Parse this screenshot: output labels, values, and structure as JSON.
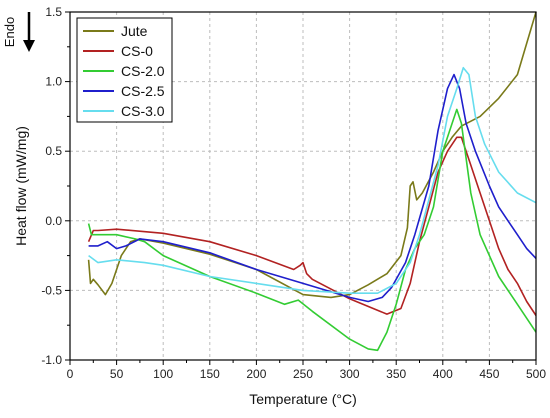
{
  "chart_data": {
    "type": "line",
    "title": "",
    "xlabel": "Temperature (°C)",
    "ylabel": "Heat flow (mW/mg)",
    "xlim": [
      0,
      500
    ],
    "ylim": [
      -1.0,
      1.5
    ],
    "xticks": [
      0,
      50,
      100,
      150,
      200,
      250,
      300,
      350,
      400,
      450,
      500
    ],
    "yticks": [
      -1.0,
      -0.5,
      0.0,
      0.5,
      1.0,
      1.5
    ],
    "xtick_labels": [
      "0",
      "50",
      "100",
      "150",
      "200",
      "250",
      "300",
      "350",
      "400",
      "450",
      "500"
    ],
    "ytick_labels": [
      "-1.0",
      "-0.5",
      "0.0",
      "0.5",
      "1.0",
      "1.5"
    ],
    "grid": true,
    "legend_position": "top-left",
    "annotation": "Endo",
    "series": [
      {
        "name": "Jute",
        "color": "#7a7a1a",
        "points": [
          [
            20,
            -0.28
          ],
          [
            22,
            -0.45
          ],
          [
            25,
            -0.42
          ],
          [
            30,
            -0.46
          ],
          [
            38,
            -0.53
          ],
          [
            45,
            -0.45
          ],
          [
            55,
            -0.25
          ],
          [
            65,
            -0.15
          ],
          [
            75,
            -0.13
          ],
          [
            100,
            -0.16
          ],
          [
            150,
            -0.24
          ],
          [
            200,
            -0.35
          ],
          [
            250,
            -0.53
          ],
          [
            280,
            -0.55
          ],
          [
            300,
            -0.53
          ],
          [
            320,
            -0.46
          ],
          [
            340,
            -0.38
          ],
          [
            355,
            -0.25
          ],
          [
            362,
            -0.05
          ],
          [
            365,
            0.25
          ],
          [
            368,
            0.28
          ],
          [
            372,
            0.15
          ],
          [
            378,
            0.2
          ],
          [
            390,
            0.35
          ],
          [
            400,
            0.5
          ],
          [
            410,
            0.6
          ],
          [
            420,
            0.68
          ],
          [
            440,
            0.75
          ],
          [
            460,
            0.88
          ],
          [
            480,
            1.05
          ],
          [
            500,
            1.5
          ]
        ]
      },
      {
        "name": "CS-0",
        "color": "#b22222",
        "points": [
          [
            20,
            -0.15
          ],
          [
            25,
            -0.07
          ],
          [
            30,
            -0.07
          ],
          [
            50,
            -0.06
          ],
          [
            100,
            -0.09
          ],
          [
            150,
            -0.15
          ],
          [
            200,
            -0.25
          ],
          [
            240,
            -0.35
          ],
          [
            247,
            -0.32
          ],
          [
            250,
            -0.3
          ],
          [
            254,
            -0.38
          ],
          [
            260,
            -0.42
          ],
          [
            300,
            -0.56
          ],
          [
            340,
            -0.67
          ],
          [
            355,
            -0.63
          ],
          [
            365,
            -0.45
          ],
          [
            375,
            -0.15
          ],
          [
            385,
            0.1
          ],
          [
            395,
            0.35
          ],
          [
            405,
            0.5
          ],
          [
            415,
            0.6
          ],
          [
            420,
            0.6
          ],
          [
            430,
            0.4
          ],
          [
            440,
            0.2
          ],
          [
            450,
            0.0
          ],
          [
            460,
            -0.2
          ],
          [
            470,
            -0.35
          ],
          [
            480,
            -0.45
          ],
          [
            490,
            -0.58
          ],
          [
            500,
            -0.68
          ]
        ]
      },
      {
        "name": "CS-2.0",
        "color": "#33cc33",
        "points": [
          [
            20,
            -0.02
          ],
          [
            23,
            -0.1
          ],
          [
            25,
            -0.1
          ],
          [
            50,
            -0.1
          ],
          [
            70,
            -0.13
          ],
          [
            80,
            -0.15
          ],
          [
            100,
            -0.25
          ],
          [
            150,
            -0.4
          ],
          [
            200,
            -0.52
          ],
          [
            230,
            -0.6
          ],
          [
            245,
            -0.57
          ],
          [
            260,
            -0.65
          ],
          [
            300,
            -0.85
          ],
          [
            320,
            -0.92
          ],
          [
            330,
            -0.93
          ],
          [
            340,
            -0.8
          ],
          [
            350,
            -0.6
          ],
          [
            360,
            -0.35
          ],
          [
            370,
            -0.2
          ],
          [
            380,
            -0.1
          ],
          [
            390,
            0.1
          ],
          [
            400,
            0.5
          ],
          [
            410,
            0.7
          ],
          [
            415,
            0.8
          ],
          [
            420,
            0.7
          ],
          [
            430,
            0.2
          ],
          [
            440,
            -0.1
          ],
          [
            460,
            -0.4
          ],
          [
            480,
            -0.6
          ],
          [
            500,
            -0.8
          ]
        ]
      },
      {
        "name": "CS-2.5",
        "color": "#1f1fcc",
        "points": [
          [
            20,
            -0.18
          ],
          [
            30,
            -0.18
          ],
          [
            40,
            -0.15
          ],
          [
            50,
            -0.2
          ],
          [
            60,
            -0.18
          ],
          [
            75,
            -0.13
          ],
          [
            100,
            -0.15
          ],
          [
            150,
            -0.23
          ],
          [
            200,
            -0.35
          ],
          [
            250,
            -0.45
          ],
          [
            300,
            -0.55
          ],
          [
            320,
            -0.58
          ],
          [
            335,
            -0.55
          ],
          [
            345,
            -0.48
          ],
          [
            360,
            -0.3
          ],
          [
            370,
            -0.1
          ],
          [
            385,
            0.25
          ],
          [
            395,
            0.65
          ],
          [
            405,
            0.95
          ],
          [
            412,
            1.05
          ],
          [
            418,
            0.95
          ],
          [
            425,
            0.7
          ],
          [
            435,
            0.5
          ],
          [
            450,
            0.25
          ],
          [
            460,
            0.1
          ],
          [
            470,
            0.0
          ],
          [
            480,
            -0.1
          ],
          [
            490,
            -0.2
          ],
          [
            500,
            -0.27
          ]
        ]
      },
      {
        "name": "CS-3.0",
        "color": "#66ddee",
        "points": [
          [
            20,
            -0.25
          ],
          [
            30,
            -0.3
          ],
          [
            50,
            -0.28
          ],
          [
            80,
            -0.3
          ],
          [
            100,
            -0.32
          ],
          [
            150,
            -0.4
          ],
          [
            200,
            -0.45
          ],
          [
            250,
            -0.5
          ],
          [
            300,
            -0.52
          ],
          [
            330,
            -0.52
          ],
          [
            350,
            -0.45
          ],
          [
            365,
            -0.3
          ],
          [
            375,
            -0.1
          ],
          [
            385,
            0.15
          ],
          [
            395,
            0.4
          ],
          [
            405,
            0.75
          ],
          [
            415,
            0.95
          ],
          [
            422,
            1.1
          ],
          [
            428,
            1.05
          ],
          [
            435,
            0.75
          ],
          [
            445,
            0.55
          ],
          [
            460,
            0.35
          ],
          [
            480,
            0.2
          ],
          [
            500,
            0.13
          ]
        ]
      }
    ]
  }
}
